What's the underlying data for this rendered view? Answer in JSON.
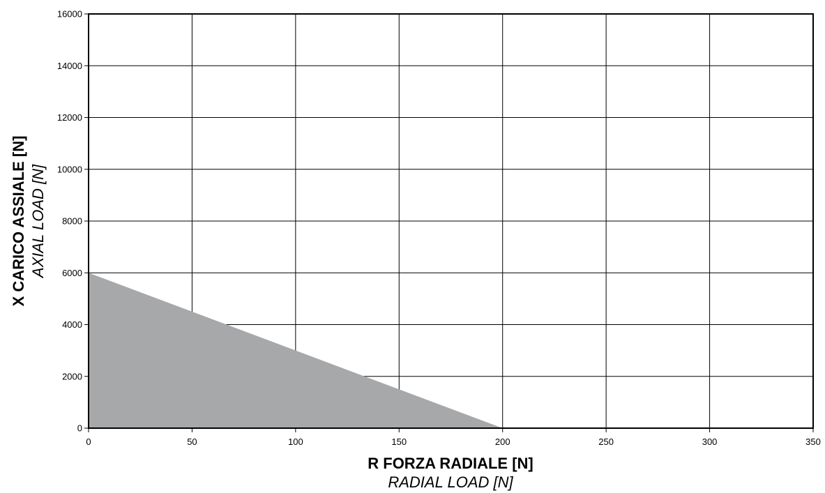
{
  "chart_data": {
    "type": "area",
    "xlabel": "R FORZA RADIALE [N]",
    "xlabel_sub": "RADIAL LOAD [N]",
    "ylabel": "X CARICO ASSIALE [N]",
    "ylabel_sub": "AXIAL LOAD  [N]",
    "xlim": [
      0,
      350
    ],
    "ylim": [
      0,
      16000
    ],
    "x_ticks": [
      "0",
      "50",
      "100",
      "150",
      "200",
      "250",
      "300",
      "350"
    ],
    "y_ticks": [
      "0",
      "2000",
      "4000",
      "6000",
      "8000",
      "10000",
      "12000",
      "14000",
      "16000"
    ],
    "grid": true,
    "series": [
      {
        "x": [
          0,
          200
        ],
        "y": [
          6000,
          0
        ],
        "fill_color": "#a7a8aa"
      }
    ]
  }
}
